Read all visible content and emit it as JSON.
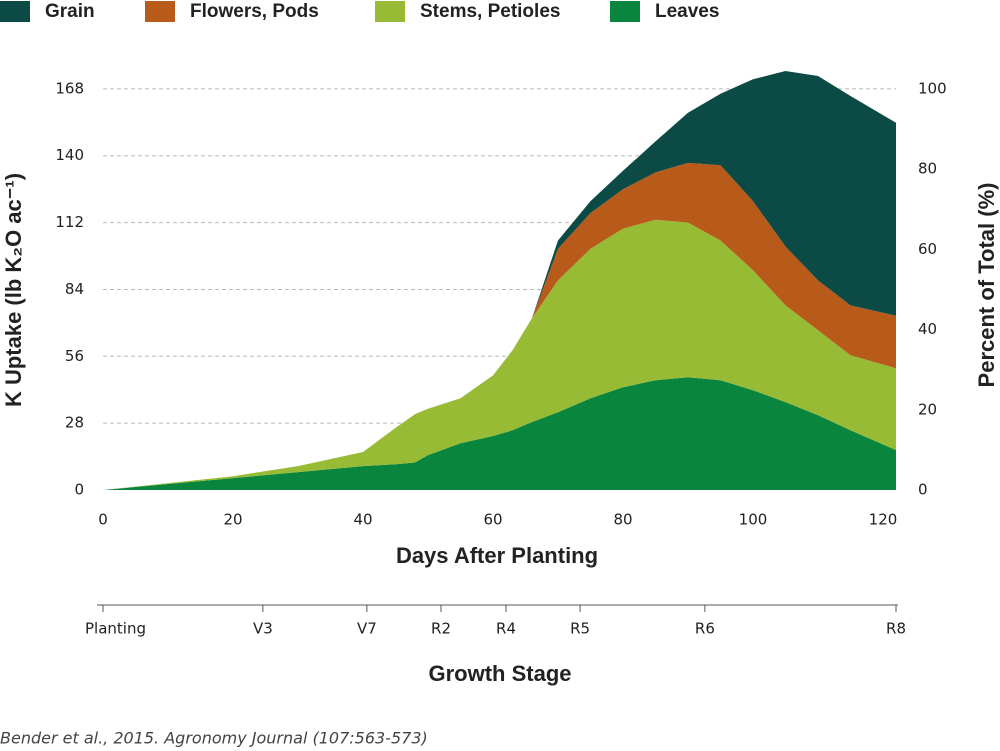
{
  "chart_data": {
    "type": "stacked_area",
    "y_label": "K Uptake  (lb K₂O ac⁻¹)",
    "y2_label": "Percent of Total (%)",
    "x_label": "Days After Planting",
    "x": [
      0,
      20,
      30,
      40,
      45,
      48,
      50,
      55,
      60,
      63,
      66,
      70,
      75,
      80,
      85,
      90,
      95,
      100,
      105,
      110,
      115,
      122
    ],
    "series": [
      {
        "name": "Grain",
        "color": "#0b4a45",
        "values": [
          0,
          0,
          0,
          0,
          0,
          0,
          0,
          0,
          0,
          0,
          0,
          3.5,
          5,
          7.7,
          13,
          21,
          30,
          51,
          73.5,
          85.6,
          87.7,
          80.8
        ]
      },
      {
        "name": "Flowers, Pods",
        "color": "#b85b1a",
        "values": [
          0,
          0,
          0,
          0,
          0,
          0,
          0,
          0,
          0,
          0,
          0,
          13.2,
          15,
          16.5,
          19.8,
          25,
          31.5,
          29,
          24.7,
          20.9,
          20.9,
          22
        ]
      },
      {
        "name": "Stems, Petioles",
        "color": "#97bb35",
        "values": [
          0,
          0.8,
          2.5,
          5.9,
          15.2,
          20.3,
          19.4,
          18.8,
          25.4,
          33.5,
          43.5,
          55.2,
          62.6,
          66.5,
          67.2,
          64.8,
          58.5,
          50.2,
          40.5,
          35.6,
          31.4,
          34.3
        ]
      },
      {
        "name": "Leaves",
        "color": "#0a853e",
        "values": [
          0,
          5,
          7.5,
          10,
          10.8,
          11.5,
          14.6,
          19.6,
          22.6,
          25,
          28.5,
          32.6,
          38.4,
          43,
          46,
          47.2,
          46,
          41.8,
          36.8,
          31.3,
          25,
          16.7
        ]
      }
    ],
    "xlim": [
      0,
      122
    ],
    "xticks": [
      0,
      20,
      40,
      60,
      80,
      100,
      120
    ],
    "ylim": [
      0,
      178
    ],
    "yticks": [
      0,
      28,
      56,
      84,
      112,
      140,
      168
    ],
    "y2lim": [
      0,
      106
    ],
    "y2ticks": [
      0,
      20,
      40,
      60,
      80,
      100
    ],
    "grid": true,
    "growth_stage": {
      "title": "Growth Stage",
      "labels": [
        "Planting",
        "V3",
        "V7",
        "R2",
        "R4",
        "R5",
        "R6",
        "R8"
      ],
      "days": [
        0,
        24.6,
        40.6,
        52,
        62,
        73.4,
        92.6,
        122
      ]
    },
    "source": "Bender et al., 2015. Agronomy Journal (107:563-573)"
  }
}
